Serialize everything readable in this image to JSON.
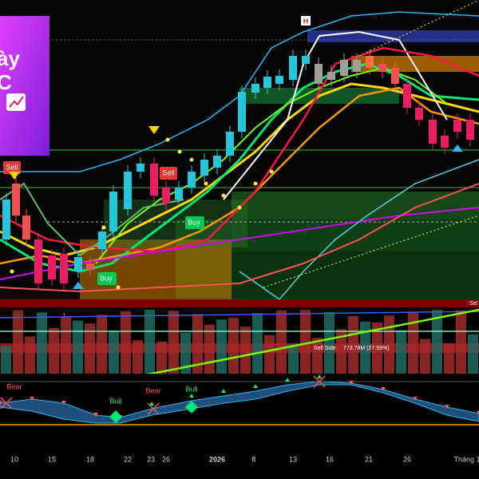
{
  "banner": {
    "line1": "ày",
    "line2": "C"
  },
  "top_marker": "H",
  "signals": [
    "Sell",
    "Sell",
    "Buy",
    "Buy"
  ],
  "small_labels": [
    "8",
    "1"
  ],
  "volume": {
    "right_label": "Sel",
    "side_label": "Sell Side",
    "side_value": "773.78M (27.59%)"
  },
  "oscillator": {
    "labels": [
      "Bear",
      "Bull",
      "Bear",
      "Bull"
    ]
  },
  "x_axis": [
    "10",
    "15",
    "18",
    "22",
    "23",
    "26",
    "2026",
    "8",
    "13",
    "16",
    "21",
    "26",
    "Tháng 1"
  ]
}
